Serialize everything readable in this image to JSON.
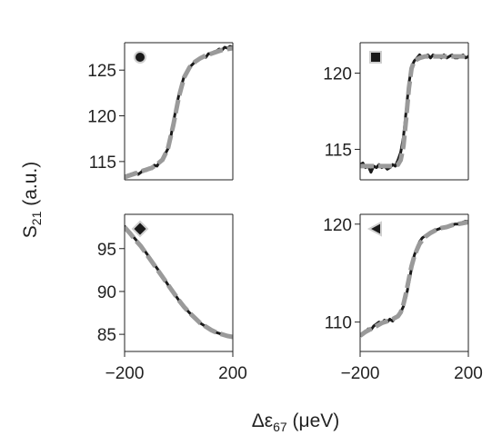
{
  "chart_data": {
    "type": "line",
    "ylabel": {
      "main": "S",
      "sub": "21",
      "rest": " (a.u.)"
    },
    "xlabel": {
      "main": "Δε",
      "sub": "67",
      "rest": " (μeV)"
    },
    "xlim": [
      -200,
      200
    ],
    "xticks": [
      {
        "value": -200,
        "label": "−200"
      },
      {
        "value": 200,
        "label": "200"
      }
    ],
    "colors": {
      "data": "#1a1a1a",
      "fit": "#9a9a9a",
      "axis": "#222222"
    },
    "panels": [
      {
        "marker": "circle",
        "ylim": [
          113,
          128
        ],
        "yticks": [
          {
            "value": 115,
            "label": "115"
          },
          {
            "value": 120,
            "label": "120"
          },
          {
            "value": 125,
            "label": "125"
          }
        ],
        "series": [
          {
            "kind": "data",
            "x": [
              -200,
              -180,
              -160,
              -150,
              -140,
              -130,
              -120,
              -110,
              -100,
              -90,
              -80,
              -70,
              -60,
              -50,
              -40,
              -30,
              -20,
              -10,
              0,
              10,
              20,
              30,
              40,
              50,
              60,
              70,
              80,
              90,
              100,
              110,
              120,
              130,
              140,
              150,
              160,
              170,
              180,
              190,
              200
            ],
            "y": [
              113.4,
              113.6,
              113.8,
              113.6,
              113.8,
              114.1,
              114.0,
              114.3,
              114.2,
              114.6,
              114.5,
              115.0,
              115.3,
              115.8,
              116.4,
              117.6,
              119.2,
              120.8,
              122.2,
              123.3,
              124.3,
              124.8,
              125.3,
              125.6,
              125.9,
              126.0,
              126.3,
              126.5,
              126.4,
              126.8,
              126.8,
              127.0,
              127.1,
              127.3,
              127.2,
              127.5,
              127.4,
              127.6,
              127.5
            ]
          },
          {
            "kind": "fit",
            "x": [
              -200,
              -180,
              -160,
              -140,
              -120,
              -100,
              -80,
              -60,
              -40,
              -20,
              0,
              20,
              40,
              60,
              80,
              100,
              120,
              140,
              160,
              180,
              200
            ],
            "y": [
              113.3,
              113.5,
              113.7,
              113.9,
              114.1,
              114.3,
              114.7,
              115.2,
              116.4,
              119.0,
              122.0,
              124.2,
              125.3,
              125.9,
              126.3,
              126.6,
              126.8,
              127.0,
              127.2,
              127.3,
              127.4
            ]
          }
        ]
      },
      {
        "marker": "square",
        "ylim": [
          113,
          122
        ],
        "yticks": [
          {
            "value": 115,
            "label": "115"
          },
          {
            "value": 120,
            "label": "120"
          }
        ],
        "series": [
          {
            "kind": "data",
            "x": [
              -200,
              -190,
              -180,
              -170,
              -160,
              -150,
              -140,
              -130,
              -120,
              -110,
              -100,
              -90,
              -80,
              -70,
              -60,
              -50,
              -40,
              -30,
              -20,
              -10,
              0,
              10,
              20,
              30,
              40,
              50,
              60,
              70,
              80,
              90,
              100,
              110,
              120,
              130,
              140,
              150,
              160,
              170,
              180,
              190,
              200
            ],
            "y": [
              114.0,
              114.1,
              113.8,
              113.9,
              113.5,
              113.9,
              113.8,
              114.0,
              113.8,
              113.9,
              113.7,
              113.8,
              114.0,
              113.9,
              114.3,
              114.8,
              115.8,
              117.5,
              119.3,
              120.4,
              120.8,
              121.0,
              121.2,
              121.0,
              121.1,
              121.2,
              121.0,
              121.2,
              121.1,
              121.1,
              121.0,
              121.2,
              121.0,
              121.1,
              121.2,
              121.0,
              121.0,
              121.1,
              121.2,
              121.0,
              121.1
            ]
          },
          {
            "kind": "fit",
            "x": [
              -200,
              -180,
              -160,
              -140,
              -120,
              -100,
              -80,
              -60,
              -50,
              -40,
              -30,
              -20,
              -10,
              0,
              20,
              40,
              60,
              80,
              100,
              120,
              140,
              160,
              180,
              200
            ],
            "y": [
              113.9,
              113.9,
              113.9,
              113.9,
              113.9,
              113.9,
              113.9,
              114.0,
              114.3,
              115.2,
              117.0,
              119.0,
              120.3,
              120.8,
              121.0,
              121.1,
              121.1,
              121.1,
              121.1,
              121.1,
              121.1,
              121.1,
              121.1,
              121.1
            ]
          }
        ]
      },
      {
        "marker": "diamond",
        "ylim": [
          83,
          99
        ],
        "yticks": [
          {
            "value": 85,
            "label": "85"
          },
          {
            "value": 90,
            "label": "90"
          },
          {
            "value": 95,
            "label": "95"
          }
        ],
        "series": [
          {
            "kind": "data",
            "x": [
              -200,
              -180,
              -160,
              -140,
              -120,
              -100,
              -80,
              -60,
              -40,
              -20,
              0,
              20,
              40,
              60,
              80,
              100,
              120,
              140,
              160,
              180,
              200
            ],
            "y": [
              97.6,
              96.9,
              96.1,
              95.4,
              94.5,
              93.6,
              92.7,
              91.8,
              90.8,
              89.9,
              89.0,
              88.2,
              87.5,
              86.9,
              86.3,
              85.9,
              85.5,
              85.2,
              85.0,
              84.8,
              84.7
            ]
          },
          {
            "kind": "fit",
            "x": [
              -200,
              -180,
              -160,
              -140,
              -120,
              -100,
              -80,
              -60,
              -40,
              -20,
              0,
              20,
              40,
              60,
              80,
              100,
              120,
              140,
              160,
              180,
              200
            ],
            "y": [
              97.5,
              96.8,
              96.0,
              95.3,
              94.4,
              93.5,
              92.6,
              91.7,
              90.8,
              89.9,
              89.0,
              88.2,
              87.5,
              86.9,
              86.3,
              85.9,
              85.5,
              85.2,
              85.0,
              84.8,
              84.7
            ]
          }
        ]
      },
      {
        "marker": "triangle-left",
        "ylim": [
          107,
          121
        ],
        "yticks": [
          {
            "value": 110,
            "label": "110"
          },
          {
            "value": 120,
            "label": "120"
          }
        ],
        "series": [
          {
            "kind": "data",
            "x": [
              -200,
              -190,
              -180,
              -170,
              -160,
              -150,
              -140,
              -130,
              -120,
              -110,
              -100,
              -90,
              -80,
              -70,
              -60,
              -50,
              -40,
              -30,
              -20,
              -10,
              0,
              10,
              20,
              30,
              40,
              50,
              60,
              70,
              80,
              90,
              100,
              110,
              120,
              130,
              140,
              150,
              160,
              170,
              180,
              190,
              200
            ],
            "y": [
              108.6,
              108.8,
              109.0,
              109.3,
              109.2,
              109.6,
              109.8,
              110.0,
              109.9,
              110.2,
              110.0,
              110.3,
              110.1,
              110.5,
              110.6,
              111.0,
              111.6,
              112.6,
              114.0,
              115.5,
              116.8,
              117.6,
              118.2,
              118.6,
              118.8,
              119.0,
              119.2,
              119.3,
              119.4,
              119.5,
              119.6,
              119.6,
              119.7,
              119.8,
              119.9,
              120.0,
              120.0,
              120.1,
              120.2,
              120.3,
              120.3
            ]
          },
          {
            "kind": "fit",
            "x": [
              -200,
              -180,
              -160,
              -140,
              -120,
              -100,
              -80,
              -60,
              -50,
              -40,
              -30,
              -20,
              -10,
              0,
              10,
              20,
              40,
              60,
              80,
              100,
              120,
              140,
              160,
              180,
              200
            ],
            "y": [
              108.6,
              109.0,
              109.3,
              109.6,
              109.9,
              110.1,
              110.3,
              110.6,
              111.0,
              111.8,
              113.0,
              114.4,
              115.7,
              116.7,
              117.4,
              118.0,
              118.7,
              119.1,
              119.4,
              119.6,
              119.7,
              119.9,
              120.0,
              120.1,
              120.2
            ]
          }
        ]
      }
    ]
  }
}
